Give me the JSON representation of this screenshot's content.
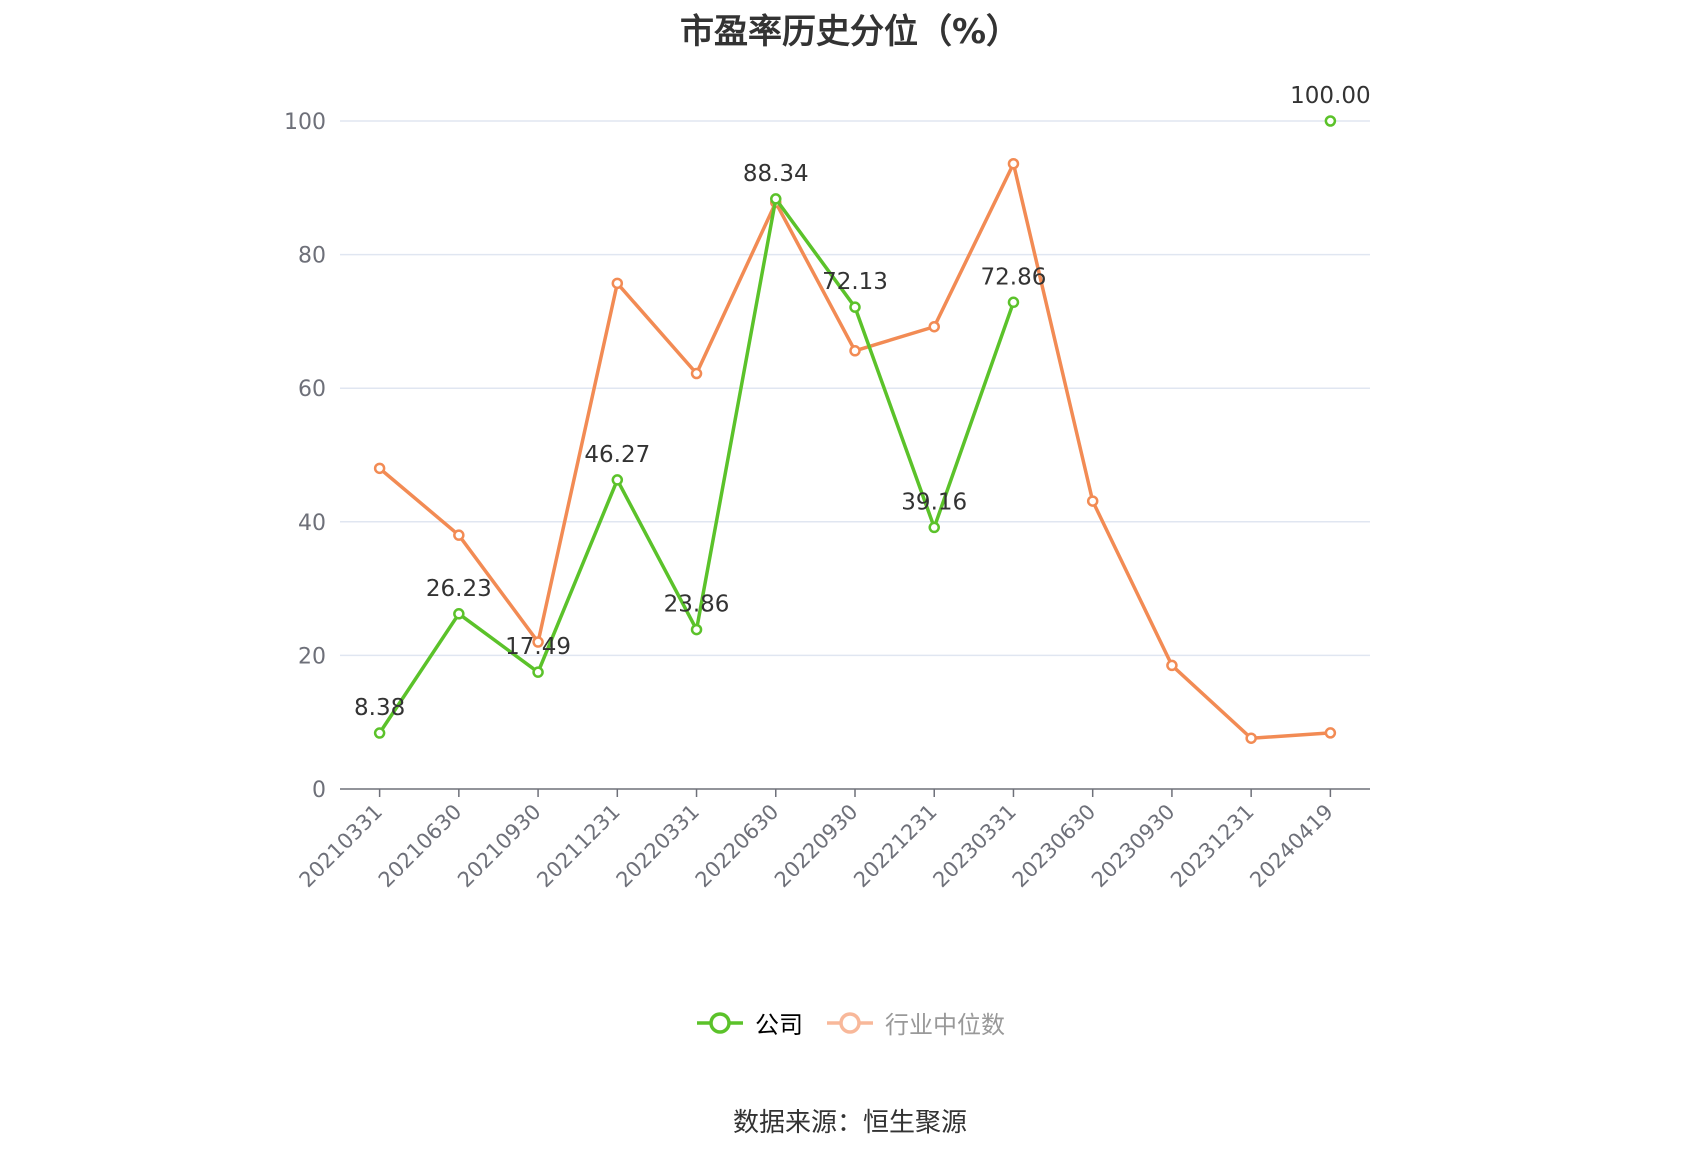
{
  "title": "市盈率历史分位（%）",
  "source": "数据来源：恒生聚源",
  "legend": {
    "company": "公司",
    "industry": "行业中位数"
  },
  "colors": {
    "company": "#5bc22a",
    "industry": "#f28b54",
    "industry_legend": "#f8b89a",
    "grid": "#e0e6f1",
    "axis": "#6e7079"
  },
  "chart_data": {
    "type": "line",
    "title": "市盈率历史分位（%）",
    "xlabel": "",
    "ylabel": "",
    "ylim": [
      0,
      100
    ],
    "yticks": [
      0,
      20,
      40,
      60,
      80,
      100
    ],
    "categories": [
      "20210331",
      "20210630",
      "20210930",
      "20211231",
      "20220331",
      "20220630",
      "20220930",
      "20221231",
      "20230331",
      "20230630",
      "20230930",
      "20231231",
      "20240419"
    ],
    "series": [
      {
        "name": "公司",
        "values": [
          8.38,
          26.23,
          17.49,
          46.27,
          23.86,
          88.34,
          72.13,
          39.16,
          72.86,
          null,
          null,
          null,
          100.0
        ],
        "labels": [
          "8.38",
          "26.23",
          "17.49",
          "46.27",
          "23.86",
          "88.34",
          "72.13",
          "39.16",
          "72.86",
          null,
          null,
          null,
          "100.00"
        ]
      },
      {
        "name": "行业中位数",
        "values": [
          48.0,
          38.0,
          22.0,
          75.7,
          62.2,
          87.8,
          65.6,
          69.2,
          93.6,
          43.1,
          18.5,
          7.6,
          8.4
        ]
      }
    ],
    "grid": true,
    "legend_position": "bottom-center"
  }
}
